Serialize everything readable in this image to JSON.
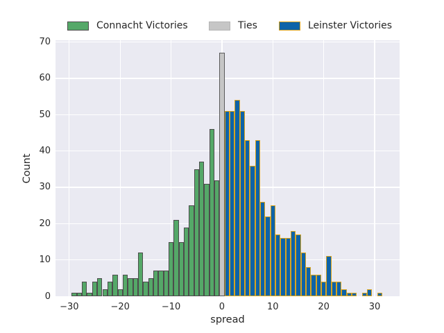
{
  "figure": {
    "background": "#ffffff",
    "axes_background": "#eaeaf2",
    "grid_color": "#ffffff",
    "text_color": "#262626"
  },
  "legend": {
    "items": [
      {
        "label": "Connacht Victories",
        "fill": "#55a868",
        "edge": "#4c4c4c"
      },
      {
        "label": "Ties",
        "fill": "#c6c6c6",
        "edge": "#b4b4b4"
      },
      {
        "label": "Leinster Victories",
        "fill": "#0d63a8",
        "edge": "#dca118"
      }
    ]
  },
  "chart_data": {
    "type": "bar",
    "subtype": "histogram",
    "title": "",
    "xlabel": "spread",
    "ylabel": "Count",
    "grid": true,
    "legend_position": "top",
    "xlim": [
      -32.7,
      34.9
    ],
    "ylim": [
      0,
      70.5
    ],
    "bin_width": 1,
    "x_tick_labels": [
      "−30",
      "−20",
      "−10",
      "0",
      "10",
      "20",
      "30"
    ],
    "x_tick_values": [
      -30,
      -20,
      -10,
      0,
      10,
      20,
      30
    ],
    "y_tick_values": [
      0,
      10,
      20,
      30,
      40,
      50,
      60,
      70
    ],
    "series": [
      {
        "name": "Connacht Victories",
        "fill": "#55a868",
        "edge": "#4c4c4c",
        "x": [
          -29,
          -28,
          -27,
          -26,
          -25,
          -24,
          -23,
          -22,
          -21,
          -20,
          -19,
          -18,
          -17,
          -16,
          -15,
          -14,
          -13,
          -12,
          -11,
          -10,
          -9,
          -8,
          -7,
          -6,
          -5,
          -4,
          -3,
          -2,
          -1
        ],
        "counts": [
          1,
          1,
          4,
          1,
          4,
          5,
          2,
          4,
          6,
          2,
          6,
          5,
          5,
          12,
          4,
          5,
          7,
          7,
          7,
          15,
          21,
          15,
          19,
          25,
          35,
          37,
          31,
          46,
          32
        ]
      },
      {
        "name": "Ties",
        "fill": "#c6c6c6",
        "edge": "#5a5a5a",
        "x": [
          0
        ],
        "counts": [
          67
        ]
      },
      {
        "name": "Leinster Victories",
        "fill": "#0d63a8",
        "edge": "#d9a41d",
        "x": [
          1,
          2,
          3,
          4,
          5,
          6,
          7,
          8,
          9,
          10,
          11,
          12,
          13,
          14,
          15,
          16,
          17,
          18,
          19,
          20,
          21,
          22,
          23,
          24,
          25,
          26,
          27,
          28,
          29,
          30,
          31
        ],
        "counts": [
          51,
          51,
          54,
          51,
          43,
          36,
          43,
          26,
          22,
          25,
          17,
          16,
          16,
          18,
          17,
          12,
          8,
          6,
          6,
          4,
          11,
          4,
          4,
          2,
          1,
          1,
          0,
          1,
          2,
          0,
          1
        ]
      }
    ]
  }
}
